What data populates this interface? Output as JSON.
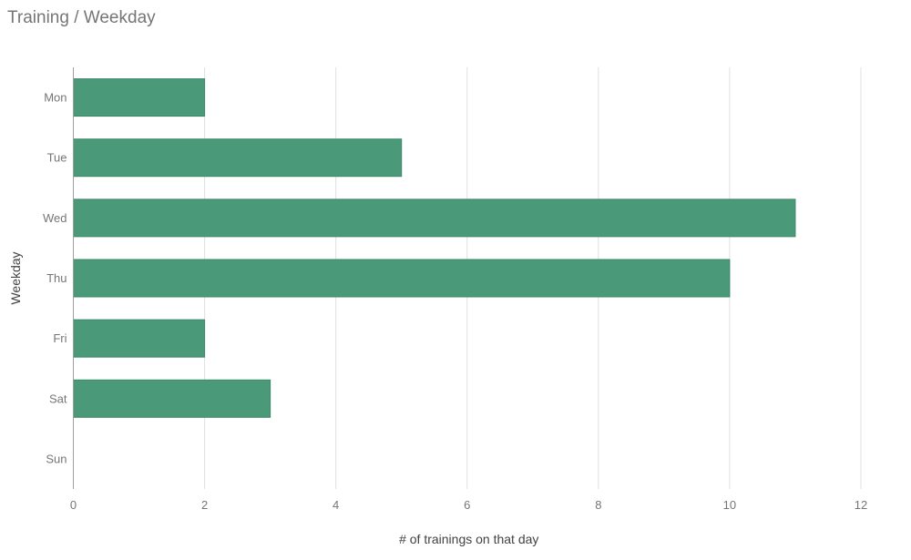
{
  "chart_data": {
    "type": "bar",
    "orientation": "horizontal",
    "title": "Training / Weekday",
    "xlabel": "# of trainings on that day",
    "ylabel": "Weekday",
    "categories": [
      "Mon",
      "Tue",
      "Wed",
      "Thu",
      "Fri",
      "Sat",
      "Sun"
    ],
    "values": [
      2,
      5,
      11,
      10,
      2,
      3,
      0
    ],
    "xlim": [
      0,
      12
    ],
    "xticks": [
      0,
      2,
      4,
      6,
      8,
      10,
      12
    ],
    "grid": true,
    "legend": "none",
    "bar_color": "#4a9a7a"
  }
}
